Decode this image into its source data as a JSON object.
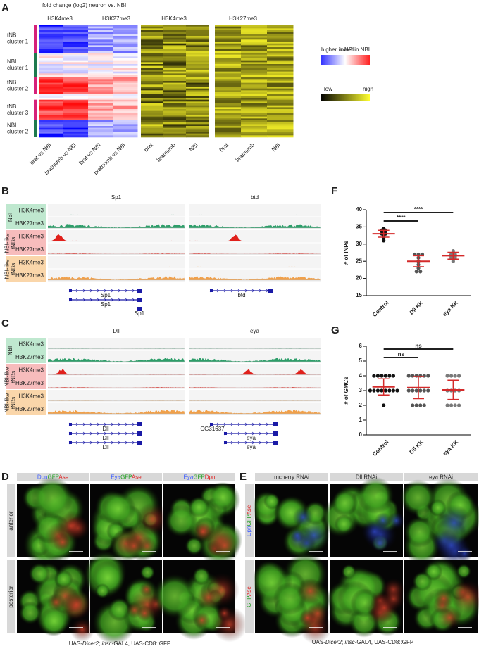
{
  "panel_labels": [
    "A",
    "B",
    "C",
    "D",
    "E",
    "F",
    "G"
  ],
  "A": {
    "title": "fold change (log2) neuron vs. NBI",
    "column_headers": [
      "H3K4me3",
      "H3K27me3",
      "H3K4me3",
      "H3K27me3"
    ],
    "row_groups": [
      {
        "lines": [
          "tNB",
          "cluster 1"
        ],
        "color": "#d6217a"
      },
      {
        "lines": [
          "NBI",
          "cluster 1"
        ],
        "color": "#1e7a4e"
      },
      {
        "lines": [
          "tNB",
          "cluster 2"
        ],
        "color": "#d6217a"
      },
      {
        "lines": [
          "tNB",
          "cluster 3"
        ],
        "color": "#d6217a"
      },
      {
        "lines": [
          "NBI",
          "cluster 2"
        ],
        "color": "#1e7a4e"
      }
    ],
    "x_labels": [
      "brat vs NBI",
      "bratnumb vs NBI",
      "brat vs NBI",
      "bratnumb vs NBI",
      "brat",
      "bratnumb",
      "NBI",
      "brat",
      "bratnumb",
      "NBI"
    ],
    "fold_legend": {
      "low_label": "higher in NBI",
      "high_label": "lower in NBI"
    },
    "signal_legend": {
      "low_label": "low",
      "high_label": "high"
    }
  },
  "B": {
    "groups": [
      {
        "lines": [
          "NBI"
        ],
        "marks": [
          "H3K4me3",
          "H3K27me3"
        ],
        "color": "#bfe8cf",
        "track_color": "#2e9e6a"
      },
      {
        "lines": [
          "NBI-like",
          "tNBs"
        ],
        "marks": [
          "H3K4me3",
          "H3K27me3"
        ],
        "color": "#f7bcbc",
        "track_color": "#e0201b"
      },
      {
        "lines": [
          "NBI-like",
          "tNBs"
        ],
        "marks": [
          "H3K4me3",
          "H3K27me3"
        ],
        "color": "#fad6aa",
        "track_color": "#f0a04a"
      }
    ],
    "genes": [
      {
        "name": "Sp1",
        "transcripts": [
          "Sp1",
          "Sp1",
          "Sp1"
        ]
      },
      {
        "name": "btd",
        "transcripts": [
          "btd"
        ]
      }
    ]
  },
  "C": {
    "groups": [
      {
        "lines": [
          "NBI"
        ],
        "marks": [
          "H3K4me3",
          "H3K27me3"
        ],
        "color": "#bfe8cf",
        "track_color": "#2e9e6a"
      },
      {
        "lines": [
          "NBI-like",
          "tNBs"
        ],
        "marks": [
          "H3K4me3",
          "H3K27me3"
        ],
        "color": "#f7bcbc",
        "track_color": "#e0201b"
      },
      {
        "lines": [
          "NBI-like",
          "tNBs"
        ],
        "marks": [
          "H3K4me3",
          "H3K27me3"
        ],
        "color": "#fad6aa",
        "track_color": "#f0a04a"
      }
    ],
    "genes": [
      {
        "name": "Dll",
        "transcripts": [
          "Dll",
          "Dll",
          "Dll"
        ]
      },
      {
        "name": "eya",
        "transcripts": [
          "CG31637",
          "eya",
          "eya"
        ]
      }
    ]
  },
  "D": {
    "columns": [
      [
        {
          "text": "Dpn",
          "color": "#3b5bff"
        },
        {
          "text": "GFP",
          "color": "#1f9e1f"
        },
        {
          "text": "Ase",
          "color": "#e02020"
        }
      ],
      [
        {
          "text": "Eya",
          "color": "#3b5bff"
        },
        {
          "text": "GFP",
          "color": "#1f9e1f"
        },
        {
          "text": "Ase",
          "color": "#e02020"
        }
      ],
      [
        {
          "text": "Eya",
          "color": "#3b5bff"
        },
        {
          "text": "GFP",
          "color": "#1f9e1f"
        },
        {
          "text": "Dpn",
          "color": "#e02020"
        }
      ]
    ],
    "rows": [
      "anterior",
      "posterior"
    ],
    "caption": [
      {
        "text": "UAS-"
      },
      {
        "text": "Dicer2",
        "italic": true
      },
      {
        "text": "; "
      },
      {
        "text": "insc",
        "italic": true
      },
      {
        "text": "-GAL4,  UAS-CD8::GFP"
      }
    ]
  },
  "E": {
    "columns": [
      "mcherry RNAi",
      "Dll RNAi",
      "eya RNAi"
    ],
    "rows": [
      [
        {
          "text": "Dpn",
          "color": "#3b5bff"
        },
        {
          "text": "GFP",
          "color": "#1f9e1f"
        },
        {
          "text": "Ase",
          "color": "#e02020"
        }
      ],
      [
        {
          "text": "GFP",
          "color": "#1f9e1f"
        },
        {
          "text": "Ase",
          "color": "#e02020"
        }
      ]
    ],
    "caption": [
      {
        "text": "UAS-"
      },
      {
        "text": "Dicer2",
        "italic": true
      },
      {
        "text": "; "
      },
      {
        "text": "insc",
        "italic": true
      },
      {
        "text": "-GAL4,  UAS-CD8::GFP"
      }
    ]
  },
  "chart_data": [
    {
      "type": "dot_plot",
      "y_label": "# of INPs",
      "categories": [
        "Control",
        "Dll KK",
        "eya KK"
      ],
      "colors": [
        "#111111",
        "#555555",
        "#7a7a7a"
      ],
      "points": [
        [
          34.5,
          34,
          34,
          33.5,
          33,
          33,
          32.5,
          32,
          31.5,
          31
        ],
        [
          27,
          27,
          27,
          26,
          25,
          24,
          23,
          22,
          22
        ],
        [
          28,
          27.5,
          27,
          27,
          26.5,
          26.5,
          26,
          26,
          25.5,
          25
        ]
      ],
      "means": [
        33,
        25,
        26.6
      ],
      "errors": [
        1,
        1.6,
        1
      ],
      "mean_color": "#d42a2a",
      "ylim": [
        15,
        40
      ],
      "yticks": [
        15,
        20,
        25,
        30,
        35,
        40
      ],
      "annotations": [
        "****",
        "****"
      ]
    },
    {
      "type": "dot_plot",
      "y_label": "# of GMCs",
      "categories": [
        "Control",
        "Dll KK",
        "eya KK"
      ],
      "colors": [
        "#111111",
        "#555555",
        "#7a7a7a"
      ],
      "points": [
        [
          4,
          4,
          4,
          4,
          4,
          4,
          3,
          3,
          3,
          3,
          3,
          3,
          3,
          3,
          2
        ],
        [
          4,
          4,
          4,
          4,
          4,
          4,
          3,
          3,
          3,
          3,
          3,
          3,
          2,
          2,
          2,
          2
        ],
        [
          4,
          4,
          4,
          4,
          3,
          3,
          3,
          3,
          2,
          2,
          2,
          2
        ]
      ],
      "means": [
        3.25,
        3.2,
        3.05
      ],
      "errors": [
        0.55,
        0.75,
        0.65
      ],
      "mean_color": "#d42a2a",
      "ylim": [
        0,
        6
      ],
      "yticks": [
        0,
        1,
        2,
        3,
        4,
        5,
        6
      ],
      "annotations": [
        "ns",
        "ns"
      ]
    }
  ]
}
